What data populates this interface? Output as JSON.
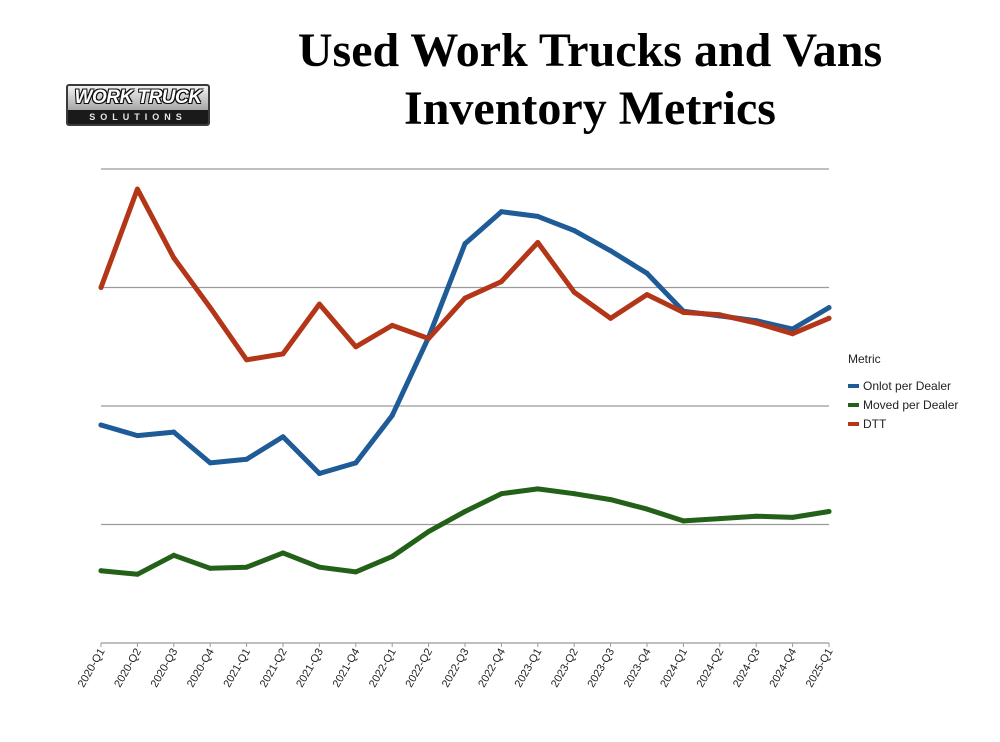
{
  "header": {
    "title_line1": "Used Work Trucks and Vans",
    "title_line2": "Inventory Metrics"
  },
  "logo": {
    "main_text": "WORK TRUCK",
    "sub_text": "SOLUTIONS"
  },
  "chart_data": {
    "type": "line",
    "title": "Used Work Trucks and Vans Inventory Metrics",
    "xlabel": "",
    "ylabel": "",
    "ylim": [
      0,
      4
    ],
    "grid": true,
    "legend_position": "right",
    "legend_title": "Metric",
    "categories": [
      "2020-Q1",
      "2020-Q2",
      "2020-Q3",
      "2020-Q4",
      "2021-Q1",
      "2021-Q2",
      "2021-Q3",
      "2021-Q4",
      "2022-Q1",
      "2022-Q2",
      "2022-Q3",
      "2022-Q4",
      "2023-Q1",
      "2023-Q2",
      "2023-Q3",
      "2023-Q4",
      "2024-Q1",
      "2024-Q2",
      "2024-Q3",
      "2024-Q4",
      "2025-Q1"
    ],
    "series": [
      {
        "name": "Onlot per Dealer",
        "color": "#1f5b96",
        "values": [
          1.84,
          1.75,
          1.78,
          1.52,
          1.55,
          1.74,
          1.43,
          1.52,
          1.92,
          2.58,
          3.37,
          3.64,
          3.6,
          3.48,
          3.31,
          3.12,
          2.8,
          2.76,
          2.72,
          2.65,
          2.83
        ]
      },
      {
        "name": "Moved per Dealer",
        "color": "#236118",
        "values": [
          0.61,
          0.58,
          0.74,
          0.63,
          0.64,
          0.76,
          0.64,
          0.6,
          0.73,
          0.94,
          1.11,
          1.26,
          1.3,
          1.26,
          1.21,
          1.13,
          1.03,
          1.05,
          1.07,
          1.06,
          1.11
        ]
      },
      {
        "name": "DTT",
        "color": "#b33618",
        "values": [
          3.0,
          3.83,
          3.25,
          2.83,
          2.39,
          2.44,
          2.86,
          2.5,
          2.68,
          2.57,
          2.91,
          3.05,
          3.38,
          2.96,
          2.74,
          2.94,
          2.79,
          2.77,
          2.7,
          2.61,
          2.74
        ]
      }
    ]
  }
}
